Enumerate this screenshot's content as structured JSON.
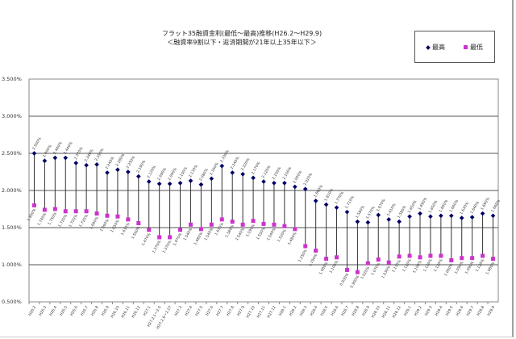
{
  "chart_data": {
    "type": "scatter",
    "title": "フラット35融資金利(最低～最高)推移(H26.2～H29.9)",
    "subtitle": "＜融資率9割以下・返済期間が21年以上35年以下＞",
    "xlabel": "",
    "ylabel": "",
    "ylim": [
      0.5,
      3.5
    ],
    "yticks": [
      "0.500%",
      "1.000%",
      "1.500%",
      "2.000%",
      "2.500%",
      "3.000%",
      "3.500%"
    ],
    "grid": true,
    "legend_position": "top-right",
    "categories": [
      "H26.2",
      "H26.3",
      "H26.4",
      "H26.5",
      "H26.6",
      "H26.7",
      "H26.8",
      "H26.9",
      "H26.10",
      "H26.11",
      "H26.12",
      "H27.1",
      "H27.2.1～2.5",
      "H27.2.6～2.27",
      "H27.3",
      "H27.4",
      "H27.5",
      "H27.6",
      "H27.7",
      "H27.8",
      "H27.9",
      "H27.10",
      "H27.11",
      "H27.12",
      "H28.1",
      "H28.2",
      "H28.3",
      "H28.4",
      "H28.5",
      "H28.6",
      "H28.7",
      "H28.8",
      "H28.9",
      "H28.10",
      "H28.11",
      "H28.12",
      "H29.1",
      "H29.2",
      "H29.3",
      "H29.4",
      "H29.5",
      "H29.6",
      "H29.7",
      "H29.8",
      "H29.9"
    ],
    "series": [
      {
        "name": "最高",
        "color": "#000066",
        "marker": "diamond",
        "values": [
          2.5,
          2.4,
          2.44,
          2.44,
          2.37,
          2.34,
          2.35,
          2.24,
          2.28,
          2.25,
          2.19,
          2.12,
          2.09,
          2.09,
          2.1,
          2.13,
          2.08,
          2.16,
          2.33,
          2.24,
          2.22,
          2.17,
          2.12,
          2.1,
          2.1,
          2.05,
          2.02,
          1.86,
          1.81,
          1.77,
          1.71,
          1.58,
          1.57,
          1.67,
          1.61,
          1.58,
          1.65,
          1.69,
          1.65,
          1.66,
          1.66,
          1.63,
          1.64,
          1.69,
          1.66
        ]
      },
      {
        "name": "最低",
        "color": "#cc33cc",
        "marker": "square",
        "values": [
          1.8,
          1.74,
          1.75,
          1.72,
          1.72,
          1.72,
          1.69,
          1.66,
          1.65,
          1.61,
          1.56,
          1.47,
          1.37,
          1.37,
          1.47,
          1.54,
          1.48,
          1.54,
          1.61,
          1.58,
          1.54,
          1.59,
          1.55,
          1.54,
          1.52,
          1.48,
          1.25,
          1.19,
          1.08,
          1.1,
          0.93,
          0.9,
          1.02,
          1.07,
          1.03,
          1.11,
          1.12,
          1.1,
          1.12,
          1.12,
          1.06,
          1.09,
          1.09,
          1.12,
          1.08
        ]
      }
    ]
  },
  "legend": {
    "max_label": "最高",
    "min_label": "最低"
  }
}
